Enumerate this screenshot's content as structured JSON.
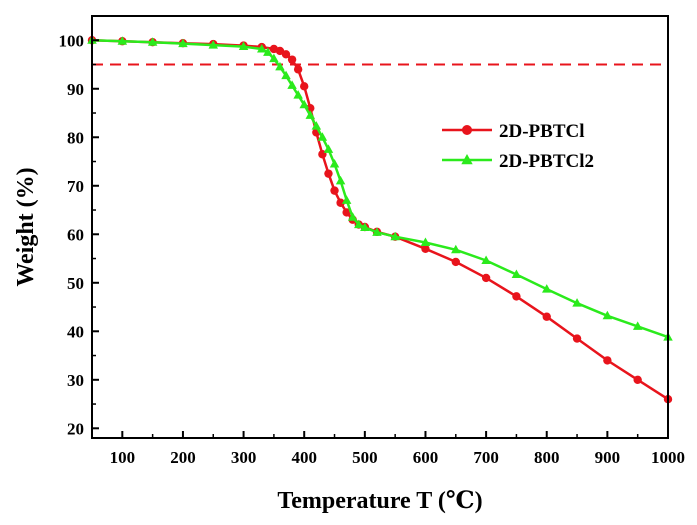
{
  "chart_data": {
    "type": "line",
    "xlabel": "Temperature T (℃)",
    "ylabel": "Weight (%)",
    "xlim": [
      50,
      1000
    ],
    "ylim": [
      18,
      105
    ],
    "xticks": [
      100,
      200,
      300,
      400,
      500,
      600,
      700,
      800,
      900,
      1000
    ],
    "yticks": [
      20,
      30,
      40,
      50,
      60,
      70,
      80,
      90,
      100
    ],
    "reference_line": {
      "y": 95,
      "style": "dashed",
      "color": "#e8141c"
    },
    "legend_position": "right-middle",
    "series": [
      {
        "name": "2D-PBTCl",
        "color": "#e8141c",
        "marker": "circle",
        "points": [
          [
            50,
            100
          ],
          [
            100,
            99.8
          ],
          [
            150,
            99.6
          ],
          [
            200,
            99.4
          ],
          [
            250,
            99.2
          ],
          [
            300,
            98.9
          ],
          [
            330,
            98.6
          ],
          [
            350,
            98.2
          ],
          [
            360,
            97.8
          ],
          [
            370,
            97.1
          ],
          [
            380,
            96
          ],
          [
            390,
            94
          ],
          [
            400,
            90.5
          ],
          [
            410,
            86
          ],
          [
            420,
            81
          ],
          [
            430,
            76.5
          ],
          [
            440,
            72.5
          ],
          [
            450,
            69
          ],
          [
            460,
            66.5
          ],
          [
            470,
            64.5
          ],
          [
            480,
            63
          ],
          [
            490,
            62
          ],
          [
            500,
            61.5
          ],
          [
            520,
            60.5
          ],
          [
            550,
            59.5
          ],
          [
            600,
            57
          ],
          [
            650,
            54.3
          ],
          [
            700,
            51
          ],
          [
            750,
            47.2
          ],
          [
            800,
            43
          ],
          [
            850,
            38.5
          ],
          [
            900,
            34
          ],
          [
            950,
            30
          ],
          [
            1000,
            26
          ]
        ]
      },
      {
        "name": "2D-PBTCl2",
        "color": "#2bea1c",
        "marker": "triangle",
        "points": [
          [
            50,
            100
          ],
          [
            100,
            99.8
          ],
          [
            150,
            99.6
          ],
          [
            200,
            99.3
          ],
          [
            250,
            99
          ],
          [
            300,
            98.7
          ],
          [
            330,
            98.2
          ],
          [
            340,
            97.5
          ],
          [
            350,
            96.2
          ],
          [
            360,
            94.5
          ],
          [
            370,
            92.7
          ],
          [
            380,
            90.7
          ],
          [
            390,
            88.7
          ],
          [
            400,
            86.7
          ],
          [
            410,
            84.5
          ],
          [
            420,
            82.3
          ],
          [
            430,
            80
          ],
          [
            440,
            77.5
          ],
          [
            450,
            74.5
          ],
          [
            460,
            71
          ],
          [
            470,
            67
          ],
          [
            480,
            63.5
          ],
          [
            490,
            62
          ],
          [
            500,
            61.4
          ],
          [
            520,
            60.4
          ],
          [
            550,
            59.5
          ],
          [
            600,
            58.3
          ],
          [
            650,
            56.8
          ],
          [
            700,
            54.6
          ],
          [
            750,
            51.7
          ],
          [
            800,
            48.7
          ],
          [
            850,
            45.8
          ],
          [
            900,
            43.2
          ],
          [
            950,
            41
          ],
          [
            1000,
            38.8
          ]
        ]
      }
    ]
  }
}
